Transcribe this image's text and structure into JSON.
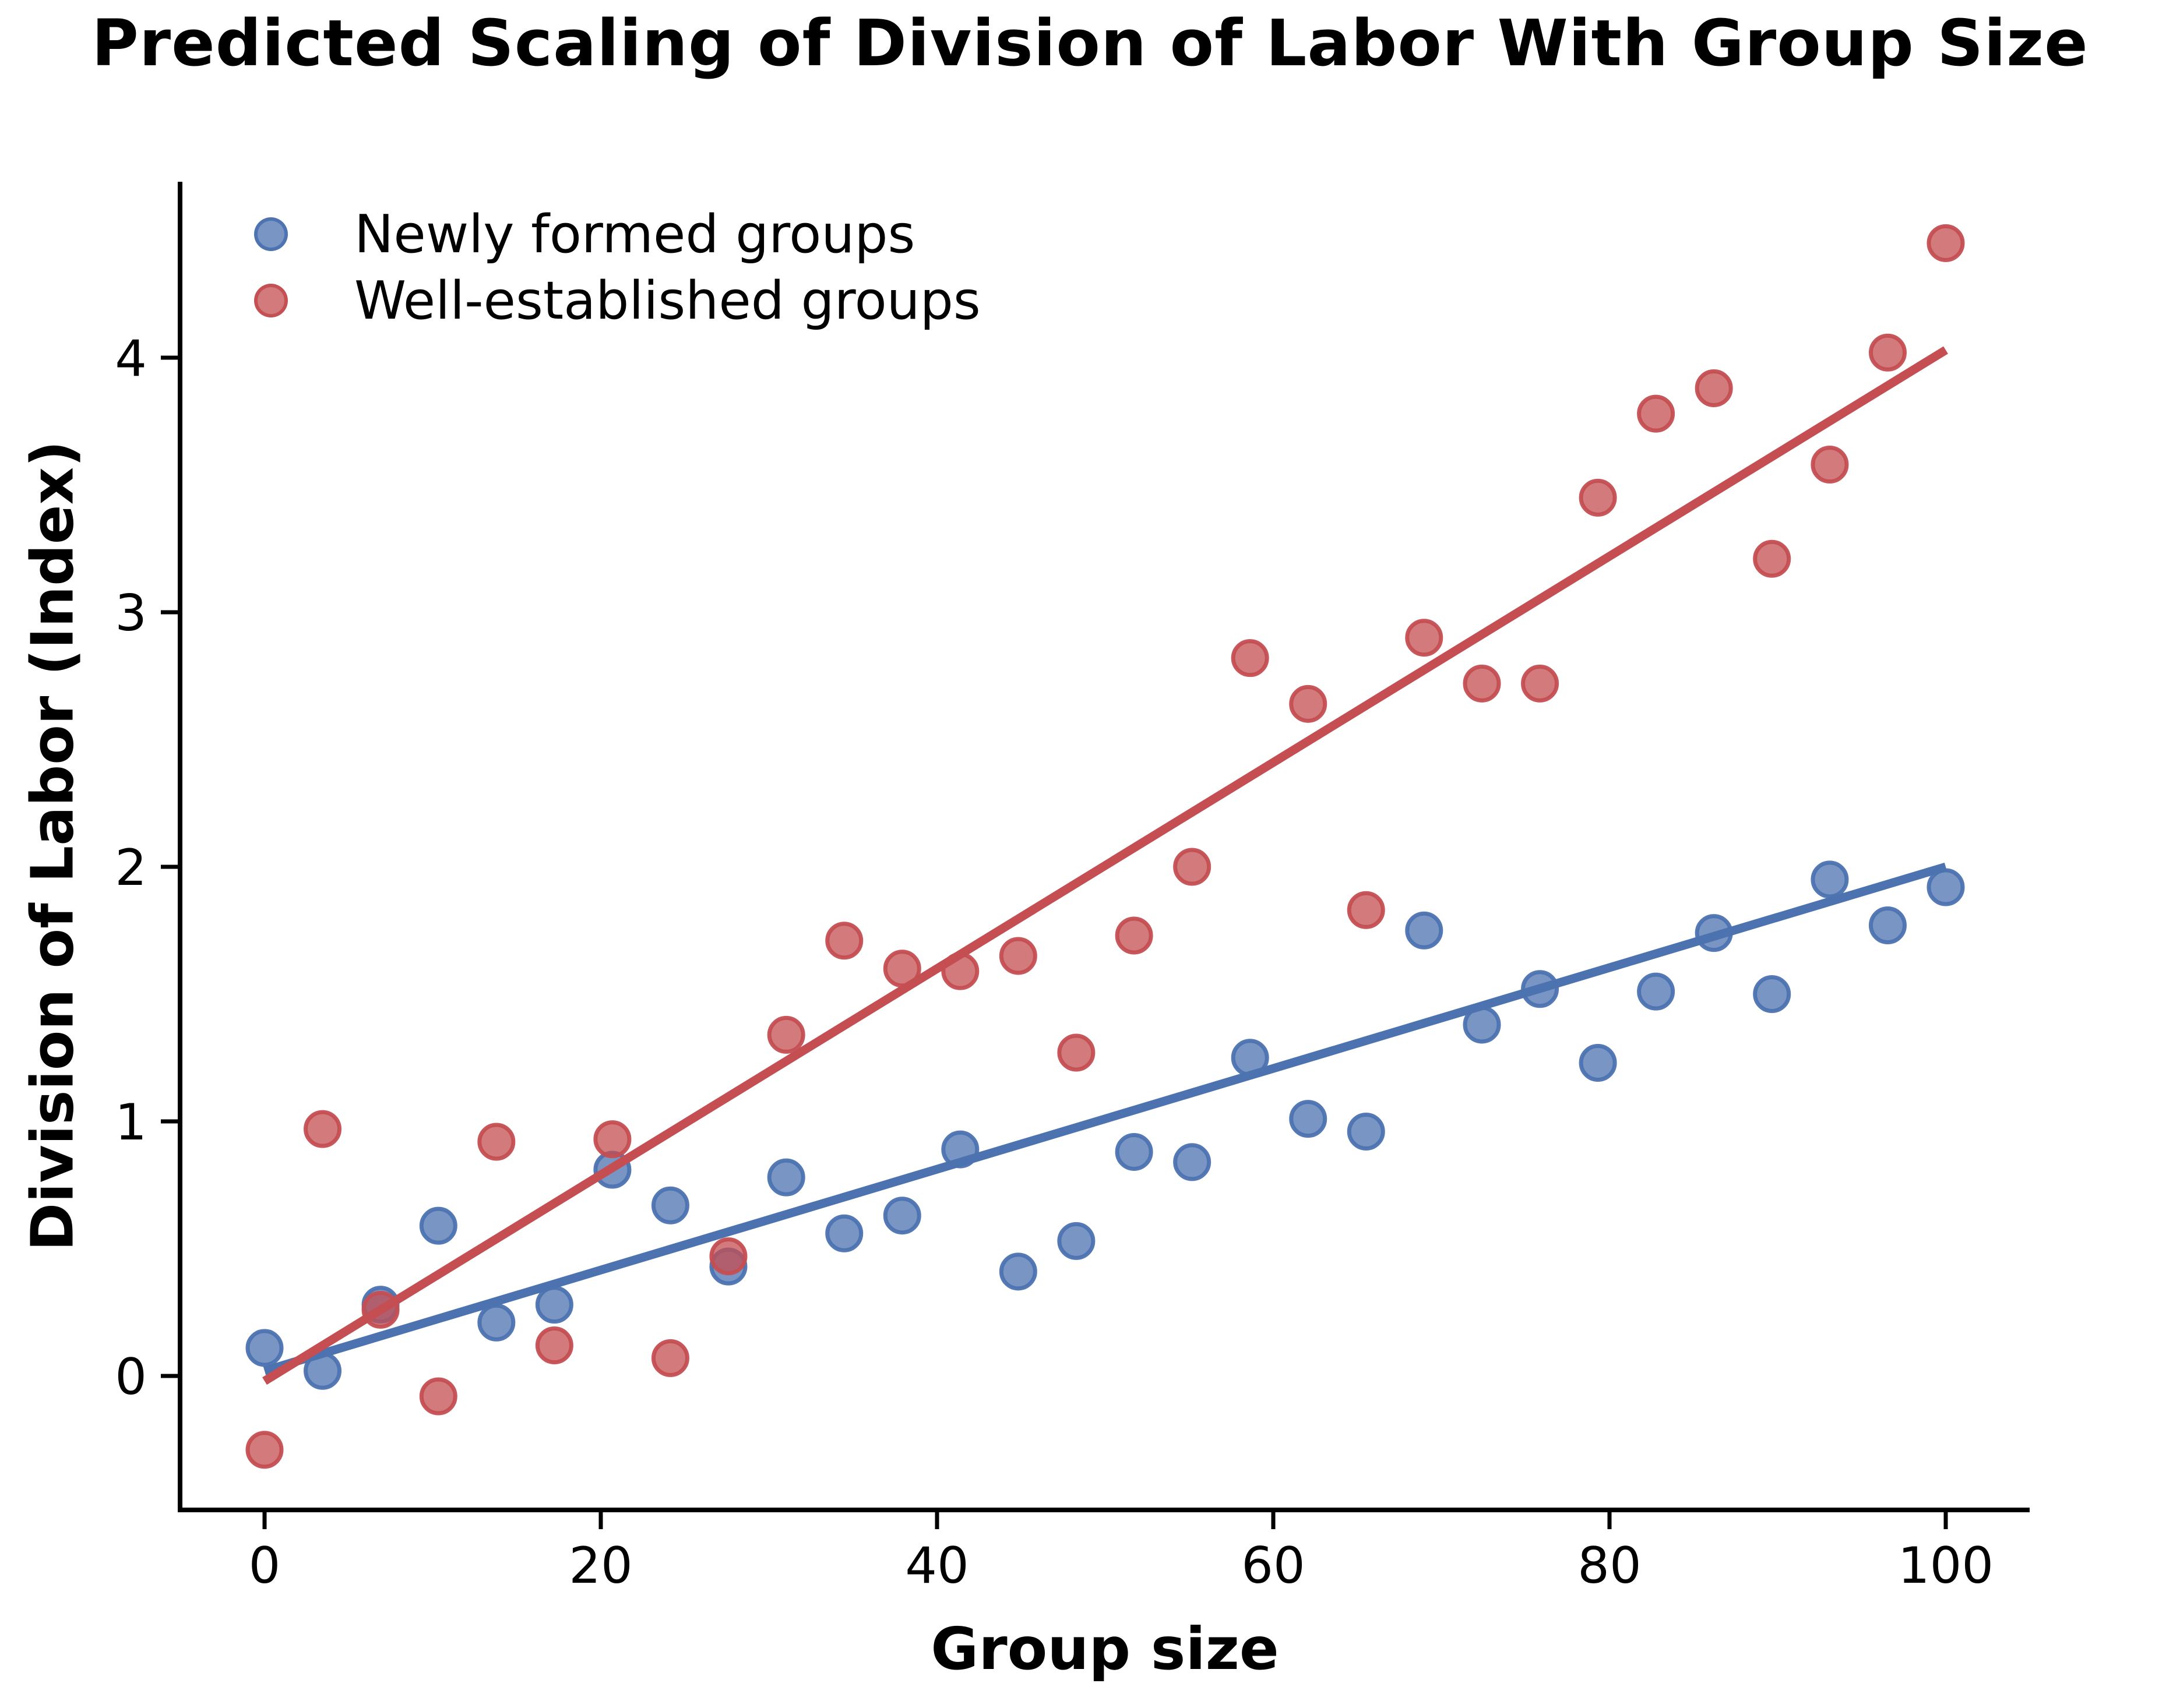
{
  "title": "Predicted Scaling of Division of Labor With Group Size",
  "legend": {
    "items": [
      {
        "label": "Newly formed groups",
        "color": "#4c72b0"
      },
      {
        "label": "Well-established groups",
        "color": "#c44e52"
      }
    ]
  },
  "chart_data": {
    "type": "scatter",
    "title": "Predicted Scaling of Division of Labor With Group Size",
    "xlabel": "Group size",
    "ylabel": "Division of Labor (Index)",
    "xlim": [
      -5,
      105
    ],
    "ylim": [
      -0.53,
      4.7
    ],
    "x_ticks": [
      0,
      20,
      40,
      60,
      80,
      100
    ],
    "y_ticks": [
      0,
      1,
      2,
      3,
      4
    ],
    "grid": false,
    "legend_position": "upper left",
    "x": [
      0,
      3.45,
      6.9,
      10.34,
      13.79,
      17.24,
      20.69,
      24.14,
      27.59,
      31.03,
      34.48,
      37.93,
      41.38,
      44.83,
      48.28,
      51.72,
      55.17,
      58.62,
      62.07,
      65.52,
      68.97,
      72.41,
      75.86,
      79.31,
      82.76,
      86.21,
      89.66,
      93.1,
      96.55,
      100
    ],
    "series": [
      {
        "name": "Newly formed groups",
        "color": "#4c72b0",
        "values": [
          0.11,
          0.02,
          0.28,
          0.59,
          0.21,
          0.28,
          0.81,
          0.67,
          0.43,
          0.78,
          0.56,
          0.63,
          0.89,
          0.41,
          0.53,
          0.88,
          0.84,
          1.25,
          1.01,
          0.96,
          1.75,
          1.38,
          1.52,
          1.23,
          1.51,
          1.74,
          1.5,
          1.95,
          1.77,
          1.92
        ]
      },
      {
        "name": "Well-established groups",
        "color": "#c44e52",
        "values": [
          -0.29,
          0.97,
          0.26,
          -0.08,
          0.92,
          0.12,
          0.93,
          0.07,
          0.47,
          1.34,
          1.71,
          1.6,
          1.59,
          1.65,
          1.27,
          1.73,
          2.0,
          2.82,
          2.64,
          1.83,
          2.9,
          2.72,
          2.72,
          3.45,
          3.78,
          3.88,
          3.21,
          3.58,
          4.02,
          4.45
        ]
      }
    ],
    "trend_lines": [
      {
        "series": "Newly formed groups",
        "color": "#4c72b0",
        "x_start": 0,
        "y_start": 0.02,
        "x_end": 100,
        "y_end": 2.0
      },
      {
        "series": "Well-established groups",
        "color": "#c44e52",
        "x_start": 0,
        "y_start": -0.02,
        "x_end": 100,
        "y_end": 4.03
      }
    ]
  }
}
